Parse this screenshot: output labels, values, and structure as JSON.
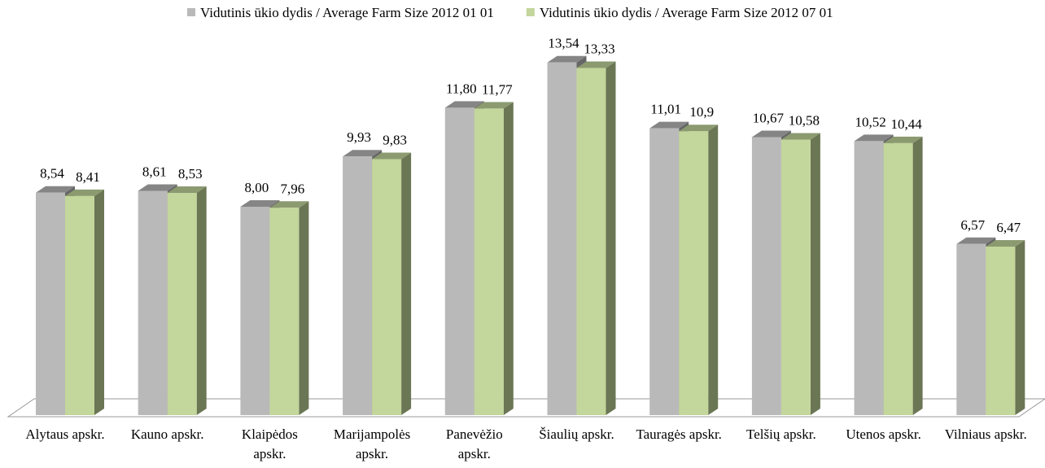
{
  "chart_data": {
    "type": "bar3d",
    "categories": [
      "Alytaus apskr.",
      "Kauno apskr.",
      "Klaipėdos apskr.",
      "Marijampolės apskr.",
      "Panevėžio apskr.",
      "Šiaulių apskr.",
      "Tauragės apskr.",
      "Telšių apskr.",
      "Utenos apskr.",
      "Vilniaus apskr."
    ],
    "series": [
      {
        "name": "Vidutinis ūkio dydis /  Average Farm Size 2012 01 01",
        "color": "#b9b9b9",
        "values": [
          8.54,
          8.61,
          8.0,
          9.93,
          11.8,
          13.54,
          11.01,
          10.67,
          10.52,
          6.57
        ],
        "value_labels": [
          "8,54",
          "8,61",
          "8,00",
          "9,93",
          "11,80",
          "13,54",
          "11,01",
          "10,67",
          "10,52",
          "6,57"
        ]
      },
      {
        "name": "Vidutinis ūkio dydis /  Average Farm Size 2012 07 01",
        "color": "#c3d69b",
        "values": [
          8.41,
          8.53,
          7.96,
          9.83,
          11.77,
          13.33,
          10.9,
          10.58,
          10.44,
          6.47
        ],
        "value_labels": [
          "8,41",
          "8,53",
          "7,96",
          "9,83",
          "11,77",
          "13,33",
          "10,9",
          "10,58",
          "10,44",
          "6,47"
        ]
      }
    ],
    "ylim": [
      0,
      14
    ]
  }
}
